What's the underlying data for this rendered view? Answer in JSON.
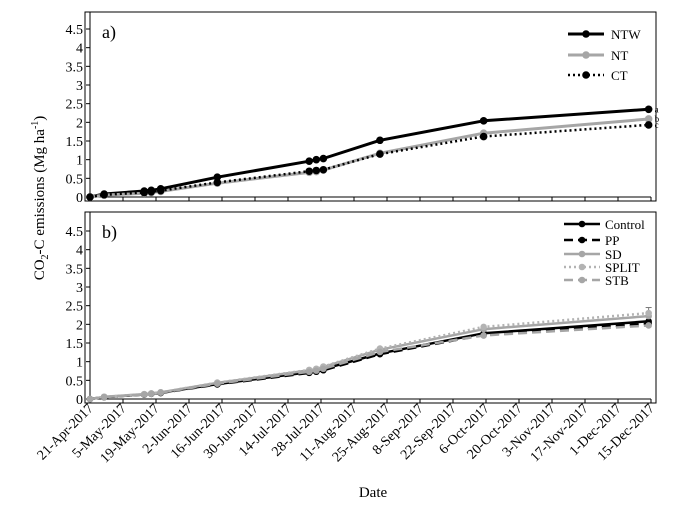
{
  "y_axis_label": {
    "prefix": "CO",
    "sub": "2",
    "middle": "-C emissions (Mg ha",
    "sup": "-1",
    "suffix": ")"
  },
  "chart_data": [
    {
      "type": "line",
      "panel_label": "a)",
      "xlabel": "",
      "ylabel": "",
      "ylim": [
        0,
        4.5
      ],
      "yticks": [
        "0",
        "0.5",
        "1",
        "1.5",
        "2",
        "2.5",
        "3",
        "3.5",
        "4",
        "4.5"
      ],
      "grid": false,
      "legend_position": "top-right",
      "series": [
        {
          "name": "NTW",
          "color": "#000000",
          "dash": "solid",
          "width": 3,
          "marker_radius": 3.8,
          "x": [
            "2017-04-21",
            "2017-04-27",
            "2017-05-14",
            "2017-05-17",
            "2017-05-21",
            "2017-06-14",
            "2017-07-23",
            "2017-07-26",
            "2017-07-29",
            "2017-08-22",
            "2017-10-05",
            "2017-12-14"
          ],
          "values": [
            0.0,
            0.08,
            0.16,
            0.18,
            0.22,
            0.53,
            0.96,
            1.0,
            1.03,
            1.52,
            2.04,
            2.35
          ],
          "end_label": "a"
        },
        {
          "name": "NT",
          "color": "#a6a6a6",
          "dash": "solid",
          "width": 3,
          "marker_radius": 3.8,
          "x": [
            "2017-04-21",
            "2017-04-27",
            "2017-05-14",
            "2017-05-17",
            "2017-05-21",
            "2017-06-14",
            "2017-07-23",
            "2017-07-26",
            "2017-07-29",
            "2017-08-22",
            "2017-10-05",
            "2017-12-14"
          ],
          "values": [
            0.0,
            0.05,
            0.1,
            0.12,
            0.15,
            0.37,
            0.66,
            0.68,
            0.72,
            1.17,
            1.71,
            2.09
          ],
          "end_label": "b"
        },
        {
          "name": "CT",
          "color": "#000000",
          "dash": "dotted",
          "width": 2.5,
          "marker_radius": 3.8,
          "x": [
            "2017-04-21",
            "2017-04-27",
            "2017-05-14",
            "2017-05-17",
            "2017-05-21",
            "2017-06-14",
            "2017-07-23",
            "2017-07-26",
            "2017-07-29",
            "2017-08-22",
            "2017-10-05",
            "2017-12-14"
          ],
          "values": [
            0.0,
            0.06,
            0.12,
            0.14,
            0.17,
            0.39,
            0.69,
            0.71,
            0.73,
            1.15,
            1.62,
            1.93
          ],
          "end_label": "c"
        }
      ]
    },
    {
      "type": "line",
      "panel_label": "b)",
      "xlabel": "Date",
      "ylabel": "",
      "ylim": [
        0,
        4.5
      ],
      "yticks": [
        "0",
        "0.5",
        "1",
        "1.5",
        "2",
        "2.5",
        "3",
        "3.5",
        "4",
        "4.5"
      ],
      "categories": [
        "21-Apr-2017",
        "5-May-2017",
        "19-May-2017",
        "2-Jun-2017",
        "16-Jun-2017",
        "30-Jun-2017",
        "14-Jul-2017",
        "28-Jul-2017",
        "11-Aug-2017",
        "25-Aug-2017",
        "8-Sep-2017",
        "22-Sep-2017",
        "6-Oct-2017",
        "20-Oct-2017",
        "3-Nov-2017",
        "17-Nov-2017",
        "1-Dec-2017",
        "15-Dec-2017"
      ],
      "tick_dates": [
        "2017-04-21",
        "2017-05-05",
        "2017-05-19",
        "2017-06-02",
        "2017-06-16",
        "2017-06-30",
        "2017-07-14",
        "2017-07-28",
        "2017-08-11",
        "2017-08-25",
        "2017-09-08",
        "2017-09-22",
        "2017-10-06",
        "2017-10-20",
        "2017-11-03",
        "2017-11-17",
        "2017-12-01",
        "2017-12-15"
      ],
      "grid": false,
      "legend_position": "top-right",
      "series": [
        {
          "name": "Control",
          "color": "#000000",
          "dash": "solid",
          "width": 2.5,
          "marker_radius": 3.3,
          "x": [
            "2017-04-21",
            "2017-04-27",
            "2017-05-14",
            "2017-05-17",
            "2017-05-21",
            "2017-06-14",
            "2017-07-23",
            "2017-07-26",
            "2017-07-29",
            "2017-08-22",
            "2017-10-05",
            "2017-12-14"
          ],
          "values": [
            0.0,
            0.05,
            0.12,
            0.14,
            0.17,
            0.4,
            0.72,
            0.75,
            0.8,
            1.22,
            1.76,
            2.08
          ]
        },
        {
          "name": "PP",
          "color": "#000000",
          "dash": "dashed",
          "width": 2.5,
          "marker_radius": 3.3,
          "x": [
            "2017-04-21",
            "2017-04-27",
            "2017-05-14",
            "2017-05-17",
            "2017-05-21",
            "2017-06-14",
            "2017-07-23",
            "2017-07-26",
            "2017-07-29",
            "2017-08-22",
            "2017-10-05",
            "2017-12-14"
          ],
          "values": [
            0.0,
            0.05,
            0.12,
            0.14,
            0.16,
            0.39,
            0.7,
            0.73,
            0.77,
            1.2,
            1.72,
            2.02
          ]
        },
        {
          "name": "SD",
          "color": "#a6a6a6",
          "dash": "solid",
          "width": 2.5,
          "marker_radius": 3.3,
          "x": [
            "2017-04-21",
            "2017-04-27",
            "2017-05-14",
            "2017-05-17",
            "2017-05-21",
            "2017-06-14",
            "2017-07-23",
            "2017-07-26",
            "2017-07-29",
            "2017-08-22",
            "2017-10-05",
            "2017-12-14"
          ],
          "values": [
            0.0,
            0.06,
            0.13,
            0.15,
            0.18,
            0.43,
            0.77,
            0.8,
            0.86,
            1.32,
            1.87,
            2.22
          ]
        },
        {
          "name": "SPLIT",
          "color": "#b3b3b3",
          "dash": "dotted",
          "width": 2.5,
          "marker_radius": 3.3,
          "x": [
            "2017-04-21",
            "2017-04-27",
            "2017-05-14",
            "2017-05-17",
            "2017-05-21",
            "2017-06-14",
            "2017-07-23",
            "2017-07-26",
            "2017-07-29",
            "2017-08-22",
            "2017-10-05",
            "2017-12-14"
          ],
          "values": [
            0.0,
            0.06,
            0.13,
            0.15,
            0.18,
            0.44,
            0.78,
            0.81,
            0.87,
            1.35,
            1.93,
            2.3
          ]
        },
        {
          "name": "STB",
          "color": "#a6a6a6",
          "dash": "dashed",
          "width": 2.5,
          "marker_radius": 3.3,
          "x": [
            "2017-04-21",
            "2017-04-27",
            "2017-05-14",
            "2017-05-17",
            "2017-05-21",
            "2017-06-14",
            "2017-07-23",
            "2017-07-26",
            "2017-07-29",
            "2017-08-22",
            "2017-10-05",
            "2017-12-14"
          ],
          "values": [
            0.0,
            0.05,
            0.12,
            0.14,
            0.17,
            0.41,
            0.73,
            0.76,
            0.81,
            1.26,
            1.7,
            1.97
          ]
        }
      ],
      "error_bar": {
        "x": "2017-12-14",
        "low": 2.05,
        "high": 2.45
      }
    }
  ]
}
